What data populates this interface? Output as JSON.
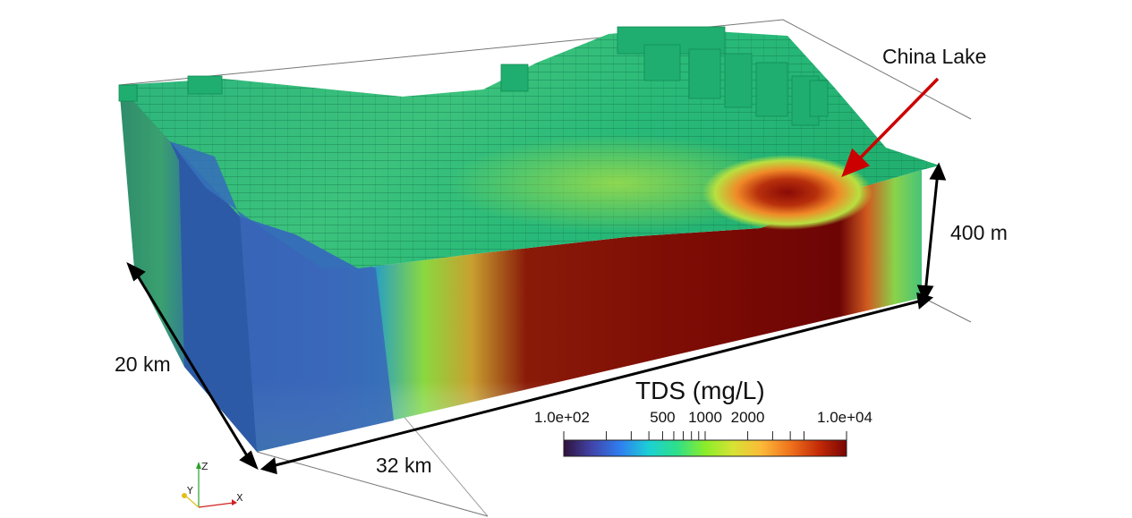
{
  "annotations": {
    "location_label": "China Lake",
    "height_label": "400 m",
    "width_label": "20 km",
    "length_label": "32 km"
  },
  "colorbar": {
    "title": "TDS (mg/L)",
    "scale": "log",
    "range": [
      100,
      10000
    ],
    "tick_labels": [
      {
        "text": "1.0e+02",
        "value": 100
      },
      {
        "text": "500",
        "value": 500
      },
      {
        "text": "1000",
        "value": 1000
      },
      {
        "text": "2000",
        "value": 2000
      },
      {
        "text": "1.0e+04",
        "value": 10000
      }
    ],
    "tick_values": [
      100,
      200,
      300,
      400,
      500,
      600,
      700,
      800,
      900,
      1000,
      2000,
      3000,
      4000,
      5000,
      10000
    ],
    "colors": [
      "#30123b",
      "#4145ab",
      "#2f7ef0",
      "#1bd0d5",
      "#2ee08a",
      "#8aed2a",
      "#d8e234",
      "#fbb938",
      "#f0731d",
      "#c52c07",
      "#7a0403"
    ]
  },
  "axes": {
    "z": "Z",
    "y": "Y",
    "x": "X"
  },
  "colors": {
    "arrow": "#cc0000",
    "low_tds": "#2c5fa8",
    "mid_tds": "#25b877",
    "high_tds": "#7a0403"
  }
}
